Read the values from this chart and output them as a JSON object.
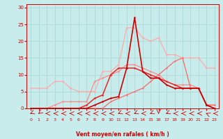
{
  "bg_color": "#c8ecec",
  "grid_color": "#a8d4d4",
  "x_ticks": [
    0,
    1,
    2,
    3,
    4,
    5,
    6,
    7,
    8,
    9,
    10,
    11,
    12,
    13,
    14,
    15,
    16,
    17,
    18,
    19,
    20,
    21,
    22,
    23
  ],
  "y_ticks": [
    0,
    5,
    10,
    15,
    20,
    25,
    30
  ],
  "xlabel": "Vent moyen/en rafales ( km/h )",
  "xlabel_color": "#cc0000",
  "lines": [
    {
      "x": [
        0,
        1,
        2,
        3,
        4,
        5,
        6,
        7,
        8,
        9,
        10,
        11,
        12,
        13,
        14,
        15,
        16,
        17,
        18,
        19,
        20,
        21,
        22,
        23
      ],
      "y": [
        6,
        6,
        6,
        8,
        8,
        6,
        5,
        5,
        5,
        11,
        11,
        13,
        24,
        24,
        21,
        20,
        21,
        16,
        16,
        15,
        15,
        15,
        12,
        12
      ],
      "color": "#ffaaaa",
      "marker": "o",
      "ms": 1.8,
      "lw": 0.9
    },
    {
      "x": [
        0,
        1,
        2,
        3,
        4,
        5,
        6,
        7,
        8,
        9,
        10,
        11,
        12,
        13,
        14,
        15,
        16,
        17,
        18,
        19,
        20,
        21,
        22,
        23
      ],
      "y": [
        0,
        0,
        0,
        1,
        2,
        2,
        2,
        2,
        8,
        9,
        10,
        11,
        13,
        13,
        12,
        11,
        10,
        8,
        7,
        7,
        7,
        6,
        1,
        1
      ],
      "color": "#ff8888",
      "marker": "o",
      "ms": 1.8,
      "lw": 0.9
    },
    {
      "x": [
        0,
        1,
        2,
        3,
        4,
        5,
        6,
        7,
        8,
        9,
        10,
        11,
        12,
        13,
        14,
        15,
        16,
        17,
        18,
        19,
        20,
        21,
        22,
        23
      ],
      "y": [
        0,
        0,
        0,
        0,
        0,
        0,
        0,
        0,
        0,
        0,
        2,
        3,
        4,
        5,
        6,
        8,
        10,
        12,
        14,
        15,
        6,
        6,
        1,
        1
      ],
      "color": "#ff6666",
      "marker": "o",
      "ms": 1.5,
      "lw": 0.9
    },
    {
      "x": [
        0,
        1,
        2,
        3,
        4,
        5,
        6,
        7,
        8,
        9,
        10,
        11,
        12,
        13,
        14,
        15,
        16,
        17,
        18,
        19,
        20,
        21,
        22,
        23
      ],
      "y": [
        0,
        0,
        0,
        0,
        0,
        0,
        0,
        1,
        3,
        4,
        10,
        12,
        12,
        12,
        11,
        10,
        9,
        8,
        7,
        6,
        6,
        6,
        1,
        0
      ],
      "color": "#ee2222",
      "marker": "o",
      "ms": 1.8,
      "lw": 1.1
    },
    {
      "x": [
        0,
        1,
        2,
        3,
        4,
        5,
        6,
        7,
        8,
        9,
        10,
        11,
        12,
        13,
        14,
        15,
        16,
        17,
        18,
        19,
        20,
        21,
        22,
        23
      ],
      "y": [
        0,
        0,
        0,
        0,
        0,
        0,
        0,
        0,
        1,
        2,
        3,
        3.5,
        12,
        27,
        11,
        9,
        9,
        7,
        6,
        6,
        6,
        6,
        1,
        0
      ],
      "color": "#cc0000",
      "marker": "o",
      "ms": 1.8,
      "lw": 1.2
    }
  ],
  "wind_symbols": [
    0,
    1,
    2,
    3,
    4,
    5,
    6,
    7,
    8,
    9,
    10,
    11,
    12,
    13,
    14,
    15,
    16,
    17,
    18,
    19,
    20,
    21,
    22,
    23
  ],
  "ylim": [
    0,
    31
  ],
  "xlim": [
    -0.5,
    23.5
  ],
  "figsize": [
    3.2,
    2.0
  ],
  "dpi": 100
}
